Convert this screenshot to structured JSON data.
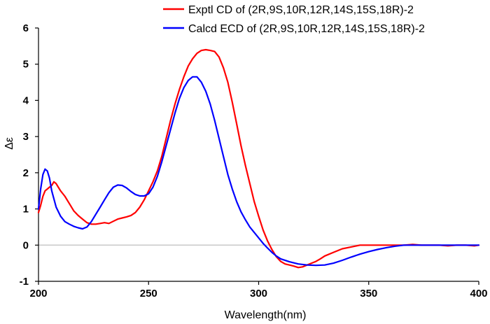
{
  "chart_data": {
    "type": "line",
    "title": "",
    "xlabel": "Wavelength(nm)",
    "ylabel": "Δε",
    "xlim": [
      200,
      400
    ],
    "ylim": [
      -1,
      6
    ],
    "x_ticks": [
      200,
      250,
      300,
      350,
      400
    ],
    "y_ticks": [
      -1,
      0,
      1,
      2,
      3,
      4,
      5,
      6
    ],
    "x_tick_labels": [
      "200",
      "250",
      "300",
      "350",
      "400"
    ],
    "y_tick_labels": [
      "-1",
      "0",
      "1",
      "2",
      "3",
      "4",
      "5",
      "6"
    ],
    "zero_line": true,
    "legend_position": "top-right",
    "series": [
      {
        "name": "Exptl CD of (2R,9S,10R,12R,14S,15S,18R)-2",
        "color": "#ff0000",
        "x": [
          200,
          201,
          202,
          203,
          204,
          205,
          206,
          207,
          208,
          209,
          210,
          212,
          214,
          216,
          218,
          220,
          222,
          224,
          226,
          228,
          230,
          232,
          234,
          236,
          238,
          240,
          242,
          244,
          246,
          248,
          250,
          252,
          254,
          256,
          258,
          260,
          262,
          264,
          266,
          268,
          270,
          272,
          274,
          276,
          278,
          280,
          282,
          284,
          286,
          288,
          290,
          292,
          294,
          296,
          298,
          300,
          302,
          304,
          306,
          308,
          310,
          312,
          314,
          316,
          318,
          320,
          322,
          324,
          326,
          328,
          330,
          334,
          338,
          342,
          346,
          350,
          354,
          358,
          362,
          366,
          370,
          374,
          378,
          382,
          386,
          390,
          394,
          398,
          400
        ],
        "y": [
          0.9,
          1.1,
          1.35,
          1.5,
          1.55,
          1.6,
          1.65,
          1.75,
          1.7,
          1.6,
          1.5,
          1.35,
          1.15,
          0.95,
          0.82,
          0.72,
          0.62,
          0.58,
          0.58,
          0.6,
          0.62,
          0.6,
          0.66,
          0.72,
          0.75,
          0.78,
          0.82,
          0.9,
          1.05,
          1.25,
          1.5,
          1.75,
          2.05,
          2.45,
          2.95,
          3.45,
          3.9,
          4.3,
          4.65,
          4.95,
          5.15,
          5.3,
          5.38,
          5.4,
          5.38,
          5.35,
          5.2,
          4.9,
          4.5,
          3.95,
          3.35,
          2.75,
          2.2,
          1.7,
          1.2,
          0.8,
          0.42,
          0.12,
          -0.12,
          -0.32,
          -0.45,
          -0.52,
          -0.55,
          -0.58,
          -0.62,
          -0.6,
          -0.55,
          -0.5,
          -0.45,
          -0.38,
          -0.3,
          -0.2,
          -0.1,
          -0.05,
          0.0,
          0.0,
          0.0,
          0.0,
          0.0,
          0.0,
          0.02,
          0.0,
          0.0,
          0.0,
          -0.02,
          0.0,
          0.0,
          -0.02,
          0.0
        ]
      },
      {
        "name": "Calcd ECD of (2R,9S,10R,12R,14S,15S,18R)-2",
        "color": "#0000ff",
        "x": [
          200,
          201,
          202,
          203,
          204,
          205,
          206,
          208,
          210,
          212,
          214,
          216,
          218,
          220,
          222,
          224,
          226,
          228,
          230,
          232,
          234,
          236,
          238,
          240,
          242,
          244,
          246,
          248,
          250,
          252,
          254,
          256,
          258,
          260,
          262,
          264,
          266,
          268,
          270,
          272,
          274,
          276,
          278,
          280,
          282,
          284,
          286,
          288,
          290,
          292,
          294,
          296,
          298,
          300,
          302,
          304,
          306,
          308,
          310,
          314,
          318,
          322,
          326,
          330,
          334,
          338,
          342,
          346,
          350,
          354,
          358,
          362,
          366,
          370,
          374,
          378,
          382,
          386,
          390,
          394,
          398,
          400
        ],
        "y": [
          1.0,
          1.55,
          1.95,
          2.1,
          2.05,
          1.85,
          1.5,
          1.05,
          0.8,
          0.65,
          0.58,
          0.52,
          0.48,
          0.45,
          0.5,
          0.65,
          0.85,
          1.05,
          1.25,
          1.45,
          1.6,
          1.66,
          1.65,
          1.58,
          1.48,
          1.4,
          1.36,
          1.36,
          1.42,
          1.6,
          1.9,
          2.3,
          2.75,
          3.2,
          3.65,
          4.05,
          4.35,
          4.55,
          4.65,
          4.65,
          4.5,
          4.25,
          3.9,
          3.45,
          2.95,
          2.45,
          1.95,
          1.55,
          1.2,
          0.92,
          0.7,
          0.5,
          0.35,
          0.2,
          0.05,
          -0.08,
          -0.2,
          -0.3,
          -0.38,
          -0.46,
          -0.52,
          -0.55,
          -0.56,
          -0.55,
          -0.5,
          -0.42,
          -0.33,
          -0.25,
          -0.18,
          -0.12,
          -0.07,
          -0.03,
          0.0,
          0.0,
          0.0,
          0.0,
          0.0,
          0.0,
          0.0,
          0.0,
          0.0,
          0.0
        ]
      }
    ]
  }
}
